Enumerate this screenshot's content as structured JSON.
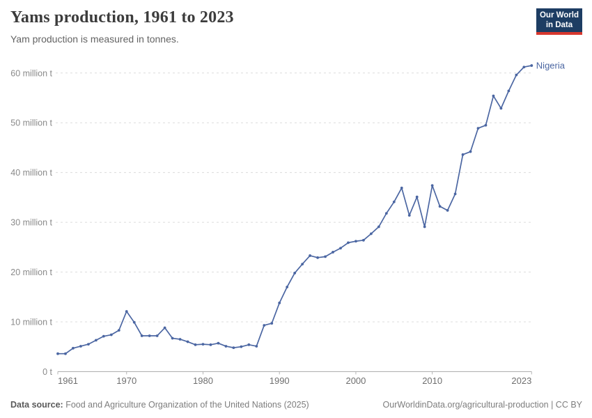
{
  "header": {
    "title": "Yams production, 1961 to 2023",
    "subtitle": "Yam production is measured in tonnes.",
    "logo_line1": "Our World",
    "logo_line2": "in Data"
  },
  "footer": {
    "source_label": "Data source:",
    "source_text": " Food and Agriculture Organization of the United Nations (2025)",
    "right_text": "OurWorldinData.org/agricultural-production | CC BY"
  },
  "colors": {
    "line": "#4b66a2",
    "grid": "#dcdcdc",
    "axis": "#a8a8a8",
    "tick": "#b5b5b5",
    "y_label": "#8a8a8a",
    "x_label": "#6f6f6f",
    "title": "#3c3c3c",
    "subtitle": "#636363",
    "footer_text": "#7d7d7d",
    "logo_bg": "#1d3d63",
    "logo_bar": "#d7382e"
  },
  "chart_data": {
    "type": "line",
    "title": "Yams production, 1961 to 2023",
    "subtitle": "Yam production is measured in tonnes.",
    "unit": "million tonnes",
    "xlabel": "",
    "ylabel": "",
    "grid": true,
    "legend_position": "end-of-line",
    "xlim": [
      1961,
      2023
    ],
    "ylim": [
      0,
      63
    ],
    "x_ticks": [
      1961,
      1970,
      1980,
      1990,
      2000,
      2010,
      2023
    ],
    "x_tick_labels": [
      "1961",
      "1970",
      "1980",
      "1990",
      "2000",
      "2010",
      "2023"
    ],
    "y_ticks": [
      0,
      10,
      20,
      30,
      40,
      50,
      60
    ],
    "y_tick_labels": [
      "0 t",
      "10 million t",
      "20 million t",
      "30 million t",
      "40 million t",
      "50 million t",
      "60 million t"
    ],
    "series": [
      {
        "name": "Nigeria",
        "color": "#4b66a2",
        "points": [
          [
            1961,
            3.6
          ],
          [
            1962,
            3.6
          ],
          [
            1963,
            4.7
          ],
          [
            1964,
            5.1
          ],
          [
            1965,
            5.5
          ],
          [
            1966,
            6.3
          ],
          [
            1967,
            7.1
          ],
          [
            1968,
            7.4
          ],
          [
            1969,
            8.3
          ],
          [
            1970,
            12.1
          ],
          [
            1971,
            9.9
          ],
          [
            1972,
            7.2
          ],
          [
            1973,
            7.2
          ],
          [
            1974,
            7.2
          ],
          [
            1975,
            8.8
          ],
          [
            1976,
            6.7
          ],
          [
            1977,
            6.5
          ],
          [
            1978,
            6.0
          ],
          [
            1979,
            5.4
          ],
          [
            1980,
            5.5
          ],
          [
            1981,
            5.4
          ],
          [
            1982,
            5.7
          ],
          [
            1983,
            5.1
          ],
          [
            1984,
            4.8
          ],
          [
            1985,
            5.0
          ],
          [
            1986,
            5.4
          ],
          [
            1987,
            5.1
          ],
          [
            1988,
            9.3
          ],
          [
            1989,
            9.7
          ],
          [
            1990,
            13.8
          ],
          [
            1991,
            17.0
          ],
          [
            1992,
            19.8
          ],
          [
            1993,
            21.6
          ],
          [
            1994,
            23.3
          ],
          [
            1995,
            22.9
          ],
          [
            1996,
            23.1
          ],
          [
            1997,
            24.0
          ],
          [
            1998,
            24.8
          ],
          [
            1999,
            25.9
          ],
          [
            2000,
            26.2
          ],
          [
            2001,
            26.4
          ],
          [
            2002,
            27.7
          ],
          [
            2003,
            29.1
          ],
          [
            2004,
            31.8
          ],
          [
            2005,
            34.1
          ],
          [
            2006,
            36.9
          ],
          [
            2007,
            31.4
          ],
          [
            2008,
            35.1
          ],
          [
            2009,
            29.1
          ],
          [
            2010,
            37.4
          ],
          [
            2011,
            33.2
          ],
          [
            2012,
            32.4
          ],
          [
            2013,
            35.7
          ],
          [
            2014,
            43.6
          ],
          [
            2015,
            44.2
          ],
          [
            2016,
            48.9
          ],
          [
            2017,
            49.5
          ],
          [
            2018,
            55.4
          ],
          [
            2019,
            52.9
          ],
          [
            2020,
            56.4
          ],
          [
            2021,
            59.6
          ],
          [
            2022,
            61.2
          ],
          [
            2023,
            61.5
          ]
        ]
      }
    ]
  }
}
